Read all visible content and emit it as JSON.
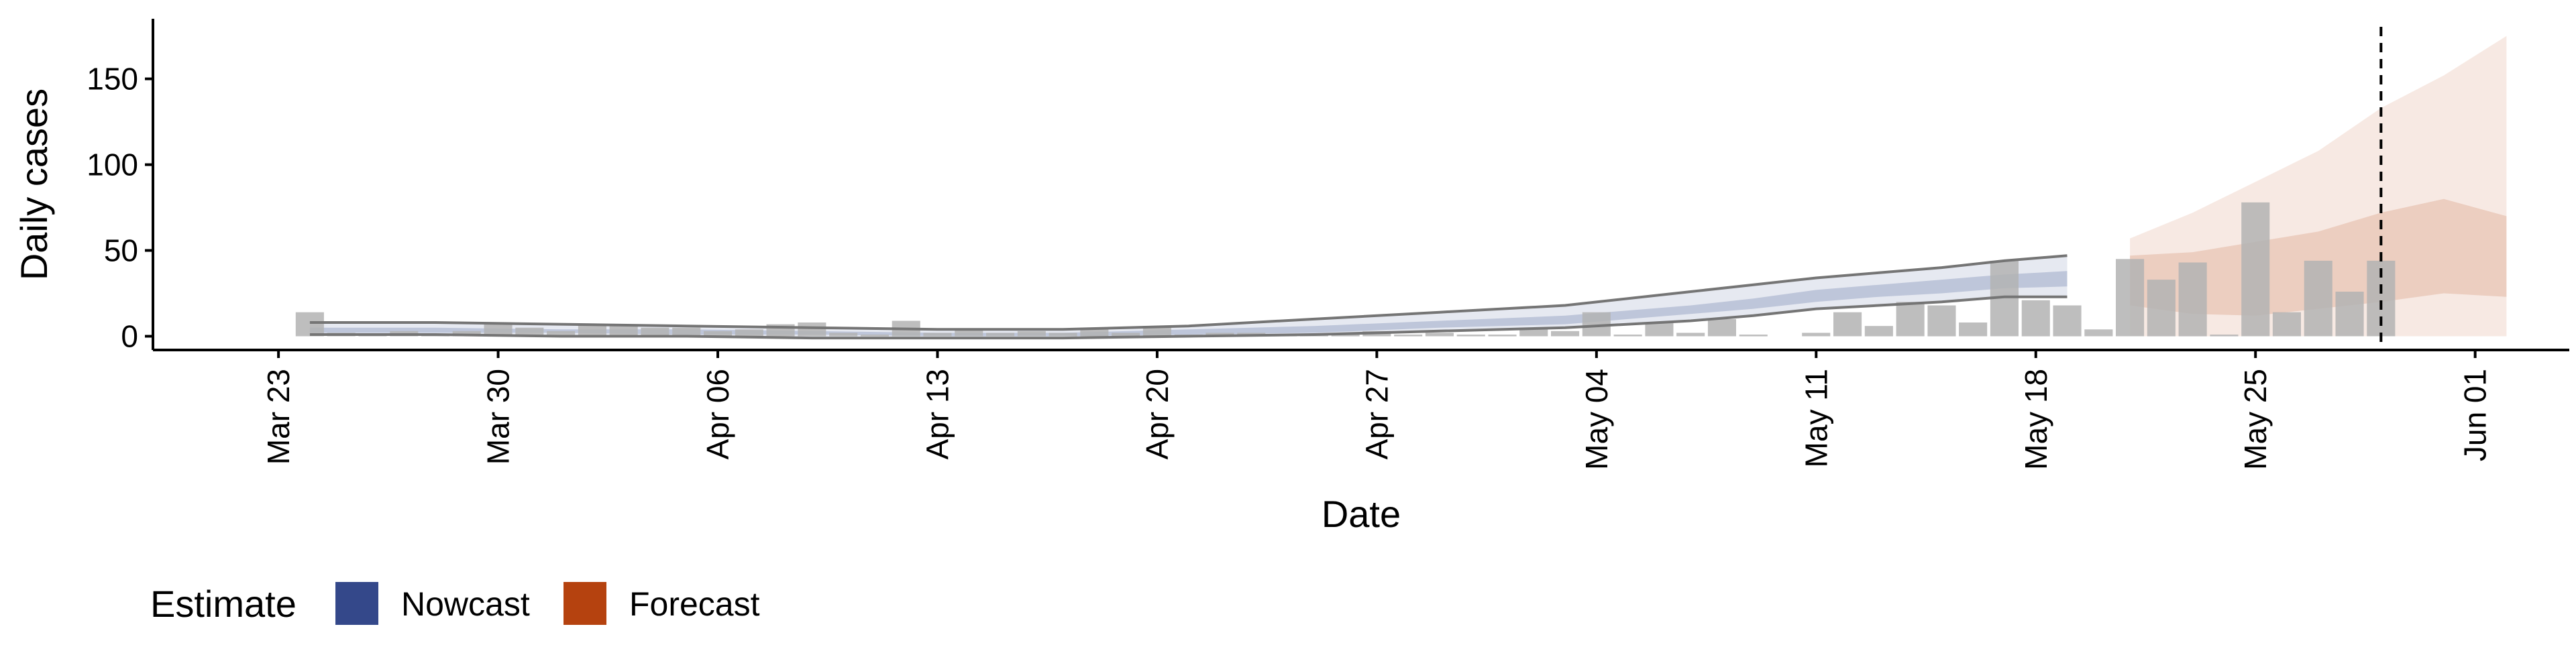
{
  "chart_data": {
    "type": "bar",
    "xlabel": "Date",
    "ylabel": "Daily cases",
    "x_range": [
      "2020-03-19",
      "2020-06-04"
    ],
    "ylim": [
      -8,
      185
    ],
    "y_ticks": [
      0,
      50,
      100,
      150
    ],
    "x_ticks": [
      {
        "date": "2020-03-23",
        "label": "Mar 23"
      },
      {
        "date": "2020-03-30",
        "label": "Mar 30"
      },
      {
        "date": "2020-04-06",
        "label": "Apr 06"
      },
      {
        "date": "2020-04-13",
        "label": "Apr 13"
      },
      {
        "date": "2020-04-20",
        "label": "Apr 20"
      },
      {
        "date": "2020-04-27",
        "label": "Apr 27"
      },
      {
        "date": "2020-05-04",
        "label": "May 04"
      },
      {
        "date": "2020-05-11",
        "label": "May 11"
      },
      {
        "date": "2020-05-18",
        "label": "May 18"
      },
      {
        "date": "2020-05-25",
        "label": "May 25"
      },
      {
        "date": "2020-06-01",
        "label": "Jun 01"
      }
    ],
    "grid": false,
    "legend_position": "bottom-left",
    "legend": {
      "title": "Estimate",
      "items": [
        {
          "label": "Nowcast",
          "color": "#34488a"
        },
        {
          "label": "Forecast",
          "color": "#b5420f"
        }
      ]
    },
    "colors": {
      "bars": "#b3b3b3",
      "nowcast_band": "#34488a",
      "forecast_band": "#c96e45",
      "outline": "#757575",
      "vline": "#000000"
    },
    "vline_date": "2020-05-29",
    "cases": {
      "dates": [
        "2020-03-24",
        "2020-03-25",
        "2020-03-26",
        "2020-03-27",
        "2020-03-28",
        "2020-03-29",
        "2020-03-30",
        "2020-03-31",
        "2020-04-01",
        "2020-04-02",
        "2020-04-03",
        "2020-04-04",
        "2020-04-05",
        "2020-04-06",
        "2020-04-07",
        "2020-04-08",
        "2020-04-09",
        "2020-04-10",
        "2020-04-11",
        "2020-04-12",
        "2020-04-13",
        "2020-04-14",
        "2020-04-15",
        "2020-04-16",
        "2020-04-17",
        "2020-04-18",
        "2020-04-19",
        "2020-04-20",
        "2020-04-21",
        "2020-04-22",
        "2020-04-23",
        "2020-04-24",
        "2020-04-25",
        "2020-04-26",
        "2020-04-27",
        "2020-04-28",
        "2020-04-29",
        "2020-04-30",
        "2020-05-01",
        "2020-05-02",
        "2020-05-03",
        "2020-05-04",
        "2020-05-05",
        "2020-05-06",
        "2020-05-07",
        "2020-05-08",
        "2020-05-09",
        "2020-05-10",
        "2020-05-11",
        "2020-05-12",
        "2020-05-13",
        "2020-05-14",
        "2020-05-15",
        "2020-05-16",
        "2020-05-17",
        "2020-05-18",
        "2020-05-19",
        "2020-05-20",
        "2020-05-21",
        "2020-05-22",
        "2020-05-23",
        "2020-05-24",
        "2020-05-25",
        "2020-05-26",
        "2020-05-27",
        "2020-05-28",
        "2020-05-29"
      ],
      "values": [
        14,
        2,
        1,
        3,
        1,
        3,
        8,
        5,
        3,
        7,
        6,
        5,
        5,
        3,
        4,
        7,
        8,
        2,
        1,
        9,
        2,
        4,
        2,
        3,
        2,
        5,
        2,
        6,
        1,
        2,
        2,
        1,
        1,
        1,
        3,
        1,
        2,
        1,
        1,
        5,
        3,
        14,
        1,
        8,
        2,
        10,
        1,
        0,
        2,
        14,
        6,
        20,
        18,
        8,
        44,
        21,
        18,
        4,
        45,
        33,
        43,
        1,
        78,
        14,
        44,
        26,
        44
      ]
    },
    "nowcast": {
      "dates": [
        "2020-03-24",
        "2020-03-28",
        "2020-04-01",
        "2020-04-05",
        "2020-04-09",
        "2020-04-13",
        "2020-04-17",
        "2020-04-21",
        "2020-04-25",
        "2020-04-29",
        "2020-05-03",
        "2020-05-07",
        "2020-05-09",
        "2020-05-11",
        "2020-05-13",
        "2020-05-15",
        "2020-05-17",
        "2020-05-19"
      ],
      "outer_upper": [
        8,
        8,
        7,
        6,
        5,
        4,
        4,
        6,
        10,
        14,
        18,
        26,
        30,
        34,
        37,
        40,
        44,
        47
      ],
      "outer_lower": [
        1,
        1,
        0,
        0,
        -1,
        -1,
        -1,
        0,
        1,
        3,
        5,
        9,
        12,
        16,
        18,
        20,
        23,
        23
      ],
      "inner_upper": [
        5,
        5,
        4,
        4,
        3,
        2,
        2,
        4,
        6,
        9,
        12,
        18,
        22,
        27,
        30,
        33,
        36,
        38
      ],
      "inner_lower": [
        2,
        2,
        2,
        1,
        1,
        0,
        0,
        1,
        2,
        5,
        7,
        13,
        16,
        20,
        23,
        25,
        28,
        29
      ]
    },
    "forecast": {
      "dates": [
        "2020-05-21",
        "2020-05-23",
        "2020-05-25",
        "2020-05-27",
        "2020-05-29",
        "2020-05-31",
        "2020-06-02"
      ],
      "outer_upper": [
        57,
        72,
        90,
        108,
        133,
        152,
        175
      ],
      "outer_lower": [
        0,
        0,
        0,
        0,
        0,
        0,
        0
      ],
      "inner_upper": [
        47,
        49,
        55,
        61,
        72,
        80,
        70
      ],
      "inner_lower": [
        18,
        13,
        12,
        16,
        20,
        25,
        23
      ]
    }
  }
}
